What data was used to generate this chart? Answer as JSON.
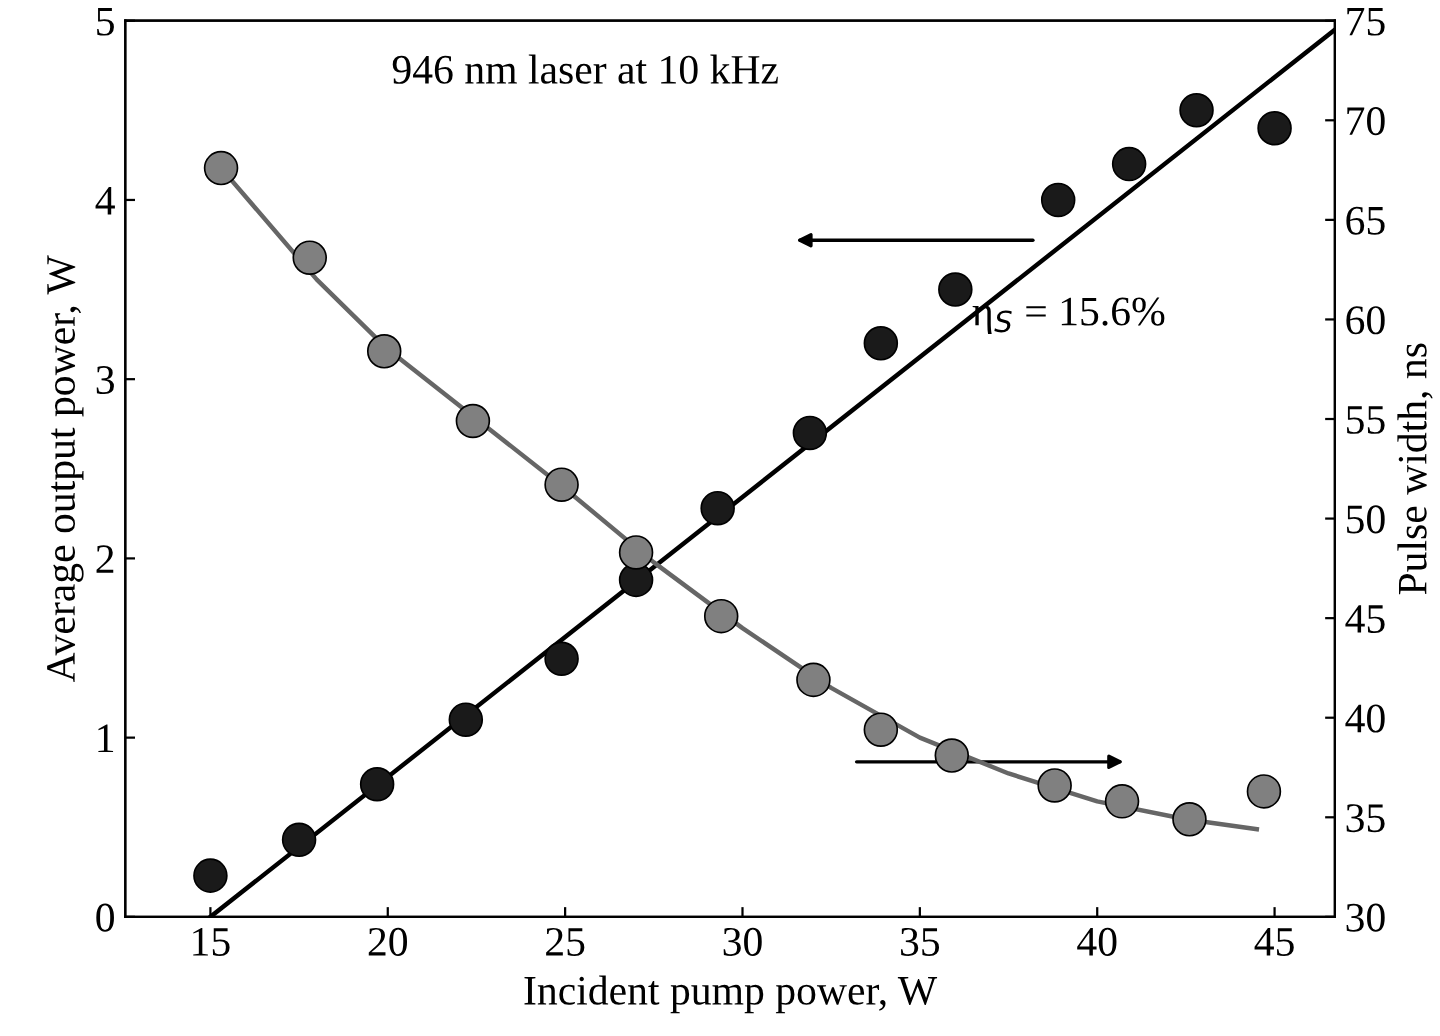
{
  "chart_data": {
    "type": "scatter",
    "xlabel": "Incident pump power, W",
    "ylabel": "Average output power, W",
    "y2label": "Pulse width, ns",
    "annotations": [
      "946 nm laser at 10 kHz",
      "η$_{S}$ = 15.6%"
    ],
    "xlim": [
      12.6,
      46.7
    ],
    "xticks": [
      15,
      20,
      25,
      30,
      35,
      40,
      45
    ],
    "ylim": [
      0,
      5
    ],
    "yticks": [
      0,
      1,
      2,
      3,
      4,
      5
    ],
    "y2lim": [
      30,
      75
    ],
    "y2ticks": [
      30,
      35,
      40,
      45,
      50,
      55,
      60,
      65,
      70,
      75
    ],
    "grid": false,
    "line_style": "solid",
    "series": [
      {
        "marker": "circle",
        "color": "#1a1a1a",
        "x": [
          15,
          17.5,
          19.7,
          22.2,
          24.9,
          27,
          29.3,
          31.9,
          33.9,
          36,
          38.9,
          40.9,
          42.8,
          45
        ],
        "values": [
          0.23,
          0.43,
          0.74,
          1.1,
          1.44,
          1.88,
          2.28,
          2.7,
          3.2,
          3.5,
          4.0,
          4.2,
          4.5,
          4.4
        ]
      },
      {
        "type": "line",
        "marker": "none",
        "color": "#000000",
        "x": [
          15,
          46.7
        ],
        "values": [
          0,
          4.95
        ]
      },
      {
        "marker": "circle",
        "color": "#808080",
        "axis": "y2",
        "x": [
          15.3,
          17.8,
          19.9,
          22.4,
          24.9,
          27,
          29.4,
          32,
          33.9,
          35.9,
          38.8,
          40.7,
          42.6,
          44.7
        ],
        "values": [
          67.6,
          63.1,
          58.4,
          54.9,
          51.7,
          48.3,
          45.1,
          41.9,
          39.4,
          38.1,
          36.6,
          35.8,
          34.9,
          36.3
        ]
      },
      {
        "type": "line",
        "marker": "none",
        "color": "#666666",
        "axis": "y2",
        "x": [
          15.3,
          18,
          20,
          22.5,
          25,
          27.5,
          30,
          32.5,
          35,
          37.5,
          40,
          42.5,
          44.5
        ],
        "values": [
          67.6,
          62,
          58.5,
          55,
          51.5,
          47.8,
          44.5,
          41.5,
          39,
          37.2,
          35.8,
          34.9,
          34.4
        ]
      }
    ]
  }
}
